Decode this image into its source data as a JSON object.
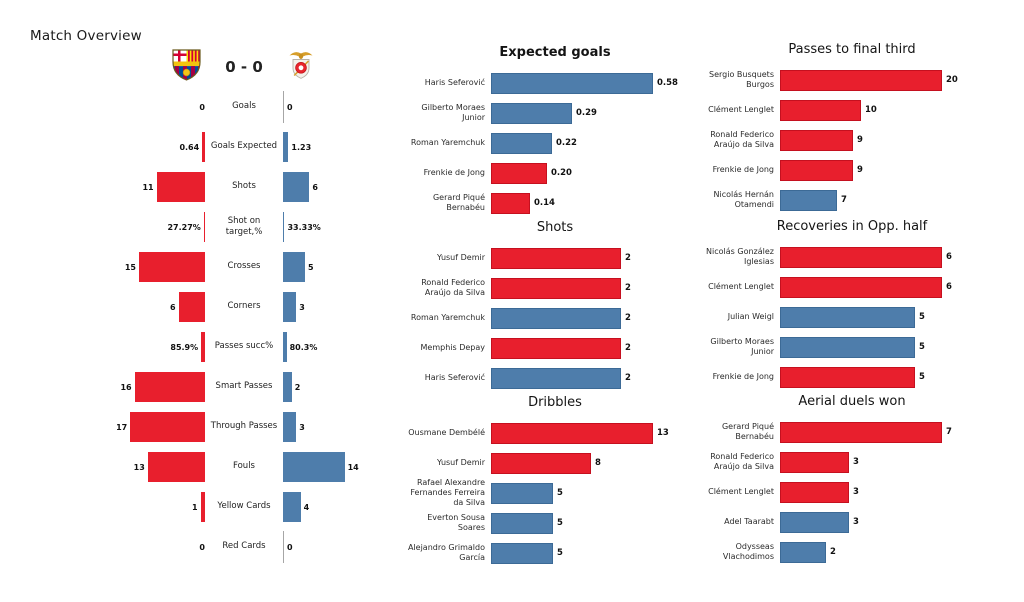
{
  "page": {
    "title": "Match Overview",
    "background": "#ffffff"
  },
  "colors": {
    "home": "#e81f2d",
    "home_edge": "#c5101f",
    "away": "#4e7dab",
    "away_edge": "#3c6a96",
    "zero_line": "#a6a6a6"
  },
  "scoreboard": {
    "score": "0 - 0",
    "home_crest_icon": "fc-barcelona-crest",
    "away_crest_icon": "sl-benfica-crest"
  },
  "chart_data": [
    {
      "id": "match-overview",
      "type": "bar",
      "variant": "mirrored",
      "title": "Match Overview",
      "legend_position": "none",
      "rows": [
        {
          "metric": "Goals",
          "home": 0,
          "away": 0,
          "home_label": "0",
          "away_label": "0",
          "percent": false
        },
        {
          "metric": "Goals Expected",
          "home": 0.64,
          "away": 1.23,
          "home_label": "0.64",
          "away_label": "1.23",
          "percent": false
        },
        {
          "metric": "Shots",
          "home": 11,
          "away": 6,
          "home_label": "11",
          "away_label": "6",
          "percent": false
        },
        {
          "metric": "Shot on\ntarget,%",
          "home": 27.27,
          "away": 33.33,
          "home_label": "27.27%",
          "away_label": "33.33%",
          "percent": true
        },
        {
          "metric": "Crosses",
          "home": 15,
          "away": 5,
          "home_label": "15",
          "away_label": "5",
          "percent": false
        },
        {
          "metric": "Corners",
          "home": 6,
          "away": 3,
          "home_label": "6",
          "away_label": "3",
          "percent": false
        },
        {
          "metric": "Passes succ%",
          "home": 85.9,
          "away": 80.3,
          "home_label": "85.9%",
          "away_label": "80.3%",
          "percent": true
        },
        {
          "metric": "Smart Passes",
          "home": 16,
          "away": 2,
          "home_label": "16",
          "away_label": "2",
          "percent": false
        },
        {
          "metric": "Through Passes",
          "home": 17,
          "away": 3,
          "home_label": "17",
          "away_label": "3",
          "percent": false
        },
        {
          "metric": "Fouls",
          "home": 13,
          "away": 14,
          "home_label": "13",
          "away_label": "14",
          "percent": false
        },
        {
          "metric": "Yellow Cards",
          "home": 1,
          "away": 4,
          "home_label": "1",
          "away_label": "4",
          "percent": false
        },
        {
          "metric": "Red Cards",
          "home": 0,
          "away": 0,
          "home_label": "0",
          "away_label": "0",
          "percent": false
        }
      ]
    },
    {
      "id": "expected-goals",
      "type": "bar",
      "title": "Expected goals",
      "title_bold": true,
      "xlim": [
        0,
        0.58
      ],
      "bars": [
        {
          "player": "Haris Seferović",
          "value": 0.58,
          "label": "0.58",
          "team": "away"
        },
        {
          "player": "Gilberto Moraes Junior",
          "value": 0.29,
          "label": "0.29",
          "team": "away"
        },
        {
          "player": "Roman Yaremchuk",
          "value": 0.22,
          "label": "0.22",
          "team": "away"
        },
        {
          "player": "Frenkie de Jong",
          "value": 0.2,
          "label": "0.20",
          "team": "home"
        },
        {
          "player": "Gerard Piqué Bernabéu",
          "value": 0.14,
          "label": "0.14",
          "team": "home"
        }
      ]
    },
    {
      "id": "shots",
      "type": "bar",
      "title": "Shots",
      "title_bold": false,
      "xlim": [
        0,
        2.5
      ],
      "bars": [
        {
          "player": "Yusuf Demir",
          "value": 2,
          "label": "2",
          "team": "home"
        },
        {
          "player": "Ronald Federico Araújo da Silva",
          "value": 2,
          "label": "2",
          "team": "home"
        },
        {
          "player": "Roman Yaremchuk",
          "value": 2,
          "label": "2",
          "team": "away"
        },
        {
          "player": "Memphis Depay",
          "value": 2,
          "label": "2",
          "team": "home"
        },
        {
          "player": "Haris Seferović",
          "value": 2,
          "label": "2",
          "team": "away"
        }
      ]
    },
    {
      "id": "dribbles",
      "type": "bar",
      "title": "Dribbles",
      "title_bold": false,
      "xlim": [
        0,
        13
      ],
      "bars": [
        {
          "player": "Ousmane Dembélé",
          "value": 13,
          "label": "13",
          "team": "home"
        },
        {
          "player": "Yusuf Demir",
          "value": 8,
          "label": "8",
          "team": "home"
        },
        {
          "player": "Rafael Alexandre Fernandes Ferreira da Silva",
          "value": 5,
          "label": "5",
          "team": "away"
        },
        {
          "player": "Everton Sousa Soares",
          "value": 5,
          "label": "5",
          "team": "away"
        },
        {
          "player": "Alejandro Grimaldo García",
          "value": 5,
          "label": "5",
          "team": "away"
        }
      ]
    },
    {
      "id": "passes-final-third",
      "type": "bar",
      "title": "Passes to final third",
      "title_bold": false,
      "xlim": [
        0,
        20
      ],
      "bars": [
        {
          "player": "Sergio Busquets Burgos",
          "value": 20,
          "label": "20",
          "team": "home"
        },
        {
          "player": "Clément Lenglet",
          "value": 10,
          "label": "10",
          "team": "home"
        },
        {
          "player": "Ronald Federico Araújo da Silva",
          "value": 9,
          "label": "9",
          "team": "home"
        },
        {
          "player": "Frenkie de Jong",
          "value": 9,
          "label": "9",
          "team": "home"
        },
        {
          "player": "Nicolás Hernán Otamendi",
          "value": 7,
          "label": "7",
          "team": "away"
        }
      ]
    },
    {
      "id": "recoveries-opp-half",
      "type": "bar",
      "title": "Recoveries in Opp. half",
      "title_bold": false,
      "xlim": [
        0,
        6
      ],
      "bars": [
        {
          "player": "Nicolás González Iglesias",
          "value": 6,
          "label": "6",
          "team": "home"
        },
        {
          "player": "Clément Lenglet",
          "value": 6,
          "label": "6",
          "team": "home"
        },
        {
          "player": "Julian Weigl",
          "value": 5,
          "label": "5",
          "team": "away"
        },
        {
          "player": "Gilberto Moraes Junior",
          "value": 5,
          "label": "5",
          "team": "away"
        },
        {
          "player": "Frenkie de Jong",
          "value": 5,
          "label": "5",
          "team": "home"
        }
      ]
    },
    {
      "id": "aerial-duels",
      "type": "bar",
      "title": "Aerial duels won",
      "title_bold": false,
      "xlim": [
        0,
        7
      ],
      "bars": [
        {
          "player": "Gerard Piqué Bernabéu",
          "value": 7,
          "label": "7",
          "team": "home"
        },
        {
          "player": "Ronald Federico Araújo da Silva",
          "value": 3,
          "label": "3",
          "team": "home"
        },
        {
          "player": "Clément Lenglet",
          "value": 3,
          "label": "3",
          "team": "home"
        },
        {
          "player": "Adel Taarabt",
          "value": 3,
          "label": "3",
          "team": "away"
        },
        {
          "player": "Odysseas Vlachodimos",
          "value": 2,
          "label": "2",
          "team": "away"
        }
      ]
    }
  ]
}
